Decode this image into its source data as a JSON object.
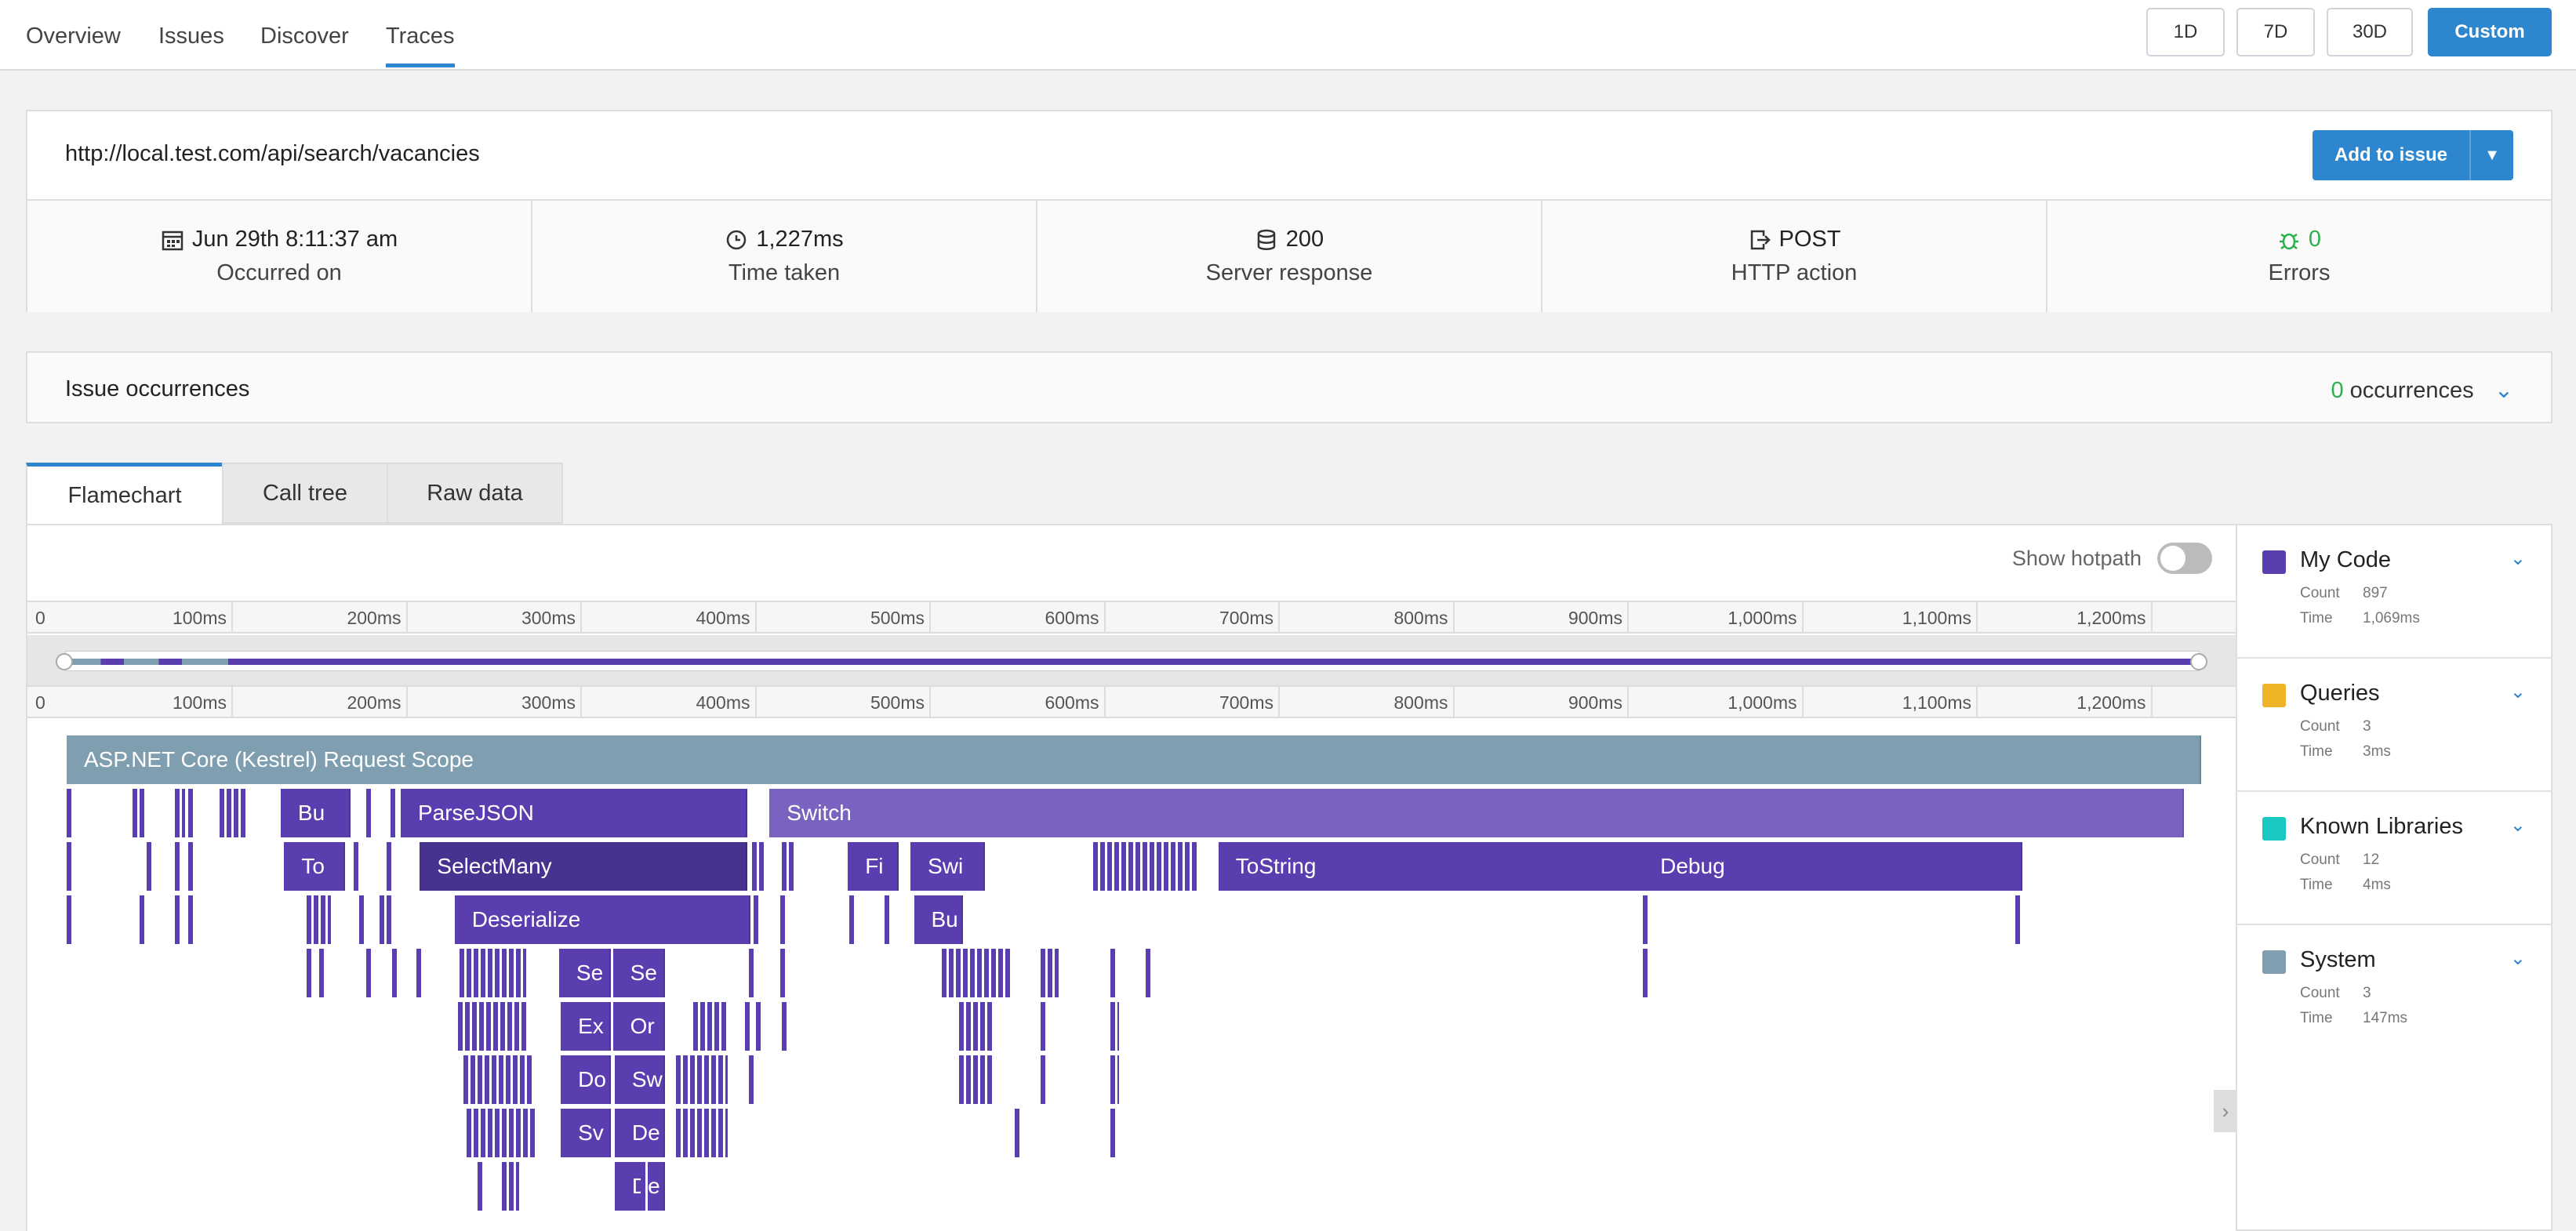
{
  "nav": {
    "tabs": [
      "Overview",
      "Issues",
      "Discover",
      "Traces"
    ],
    "active": "Traces",
    "ranges": [
      "1D",
      "7D",
      "30D",
      "Custom"
    ],
    "active_range": "Custom"
  },
  "trace": {
    "url": "http://local.test.com/api/search/vacancies",
    "add_to_issue": "Add to issue",
    "stats": [
      {
        "icon": "calendar-icon",
        "value": "Jun 29th 8:11:37 am",
        "label": "Occurred on"
      },
      {
        "icon": "clock-icon",
        "value": "1,227ms",
        "label": "Time taken"
      },
      {
        "icon": "database-icon",
        "value": "200",
        "label": "Server response"
      },
      {
        "icon": "exit-icon",
        "value": "POST",
        "label": "HTTP action"
      },
      {
        "icon": "bug-icon",
        "value": "0",
        "label": "Errors"
      }
    ]
  },
  "occurrences": {
    "title": "Issue occurrences",
    "count": "0",
    "suffix": "occurrences"
  },
  "view_tabs": [
    "Flamechart",
    "Call tree",
    "Raw data"
  ],
  "active_view": "Flamechart",
  "flamechart": {
    "show_hotpath": "Show hotpath",
    "hotpath_on": false,
    "ticks": [
      "0",
      "100ms",
      "200ms",
      "300ms",
      "400ms",
      "500ms",
      "600ms",
      "700ms",
      "800ms",
      "900ms",
      "1,000ms",
      "1,100ms",
      "1,200ms"
    ],
    "bars": [
      {
        "label": "ASP.NET Core (Kestrel) Request Scope",
        "level": 0,
        "start": 0,
        "end": 1227,
        "color": "#7f9fb0"
      },
      {
        "label": "Bu",
        "level": 1,
        "start": 123,
        "end": 163,
        "color": "#5a3eb0"
      },
      {
        "label": "ParseJSON",
        "level": 1,
        "start": 192,
        "end": 391,
        "color": "#5a3eb0"
      },
      {
        "label": "Switch",
        "level": 1,
        "start": 404,
        "end": 1217,
        "color": "#7a62c0"
      },
      {
        "label": "To",
        "level": 2,
        "start": 125,
        "end": 160,
        "color": "#5a3eb0"
      },
      {
        "label": "SelectMany",
        "level": 2,
        "start": 203,
        "end": 391,
        "color": "#47338f"
      },
      {
        "label": "Fi",
        "level": 2,
        "start": 449,
        "end": 478,
        "color": "#5a3eb0"
      },
      {
        "label": "Swi",
        "level": 2,
        "start": 485,
        "end": 528,
        "color": "#5a3eb0"
      },
      {
        "label": "ToString",
        "level": 2,
        "start": 662,
        "end": 908,
        "color": "#5a3eb0"
      },
      {
        "label": "Debug",
        "level": 2,
        "start": 906,
        "end": 1124,
        "color": "#5a3eb0"
      },
      {
        "label": "Deserialize",
        "level": 3,
        "start": 223,
        "end": 393,
        "color": "#5a3eb0"
      },
      {
        "label": "Bu",
        "level": 3,
        "start": 487,
        "end": 515,
        "color": "#5a3eb0"
      },
      {
        "label": "Se",
        "level": 4,
        "start": 283,
        "end": 313,
        "color": "#5a3eb0"
      },
      {
        "label": "Se",
        "level": 4,
        "start": 314,
        "end": 344,
        "color": "#5a3eb0"
      },
      {
        "label": "Ex",
        "level": 5,
        "start": 284,
        "end": 313,
        "color": "#5a3eb0"
      },
      {
        "label": "Or",
        "level": 5,
        "start": 314,
        "end": 344,
        "color": "#5a3eb0"
      },
      {
        "label": "Do",
        "level": 6,
        "start": 284,
        "end": 313,
        "color": "#5a3eb0"
      },
      {
        "label": "Sw",
        "level": 6,
        "start": 315,
        "end": 344,
        "color": "#5a3eb0"
      },
      {
        "label": "Sv",
        "level": 7,
        "start": 284,
        "end": 313,
        "color": "#5a3eb0"
      },
      {
        "label": "De",
        "level": 7,
        "start": 315,
        "end": 344,
        "color": "#5a3eb0"
      },
      {
        "label": "De",
        "level": 8,
        "start": 315,
        "end": 344,
        "color": "#5a3eb0"
      }
    ]
  },
  "legend": [
    {
      "name": "My Code",
      "color": "#5a3eb0",
      "count": "897",
      "time": "1,069ms"
    },
    {
      "name": "Queries",
      "color": "#f0b429",
      "count": "3",
      "time": "3ms"
    },
    {
      "name": "Known Libraries",
      "color": "#19c8c0",
      "count": "12",
      "time": "4ms"
    },
    {
      "name": "System",
      "color": "#7f9fb0",
      "count": "3",
      "time": "147ms"
    }
  ],
  "legend_labels": {
    "count": "Count",
    "time": "Time"
  }
}
